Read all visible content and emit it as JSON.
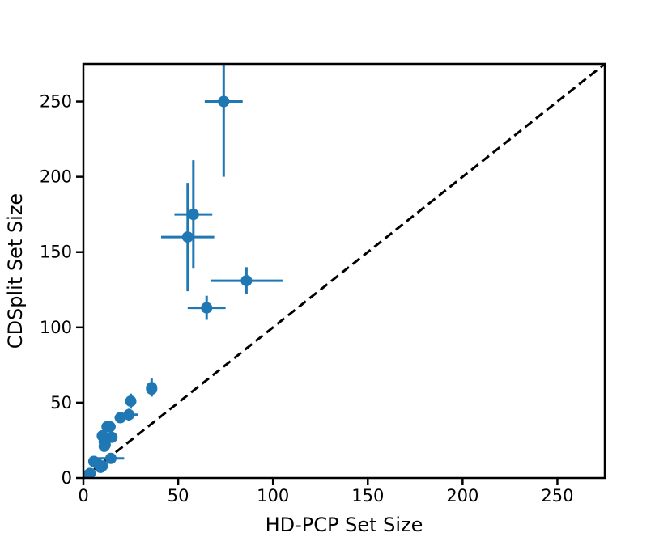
{
  "chart_data": {
    "type": "scatter",
    "title": "",
    "xlabel": "HD-PCP Set Size",
    "ylabel": "CDSplit Set Size",
    "xlim": [
      0,
      275
    ],
    "ylim": [
      0,
      275
    ],
    "xticks": [
      0,
      50,
      100,
      150,
      200,
      250
    ],
    "yticks": [
      0,
      50,
      100,
      150,
      200,
      250
    ],
    "grid": false,
    "legend": "none",
    "reference_line": {
      "style": "dashed",
      "color": "#000000",
      "from": [
        0,
        0
      ],
      "to": [
        275,
        275
      ]
    },
    "marker_color": "#1f77b4",
    "points": [
      {
        "x": 74,
        "y": 250,
        "xerr": 10,
        "yerr": 50
      },
      {
        "x": 58,
        "y": 175,
        "xerr": 10,
        "yerr": 36
      },
      {
        "x": 55,
        "y": 160,
        "xerr": 14,
        "yerr": 36
      },
      {
        "x": 86,
        "y": 131,
        "xerr": 19,
        "yerr": 9
      },
      {
        "x": 65,
        "y": 113,
        "xerr": 10,
        "yerr": 8
      },
      {
        "x": 36,
        "y": 60,
        "xerr": 2,
        "yerr": 6
      },
      {
        "x": 36,
        "y": 59,
        "xerr": 2,
        "yerr": 4
      },
      {
        "x": 25,
        "y": 51,
        "xerr": 2,
        "yerr": 5
      },
      {
        "x": 24,
        "y": 42,
        "xerr": 5,
        "yerr": 4
      },
      {
        "x": 19.5,
        "y": 40,
        "xerr": 3,
        "yerr": 2
      },
      {
        "x": 14,
        "y": 34,
        "xerr": 3,
        "yerr": 2
      },
      {
        "x": 12.5,
        "y": 34,
        "xerr": 2,
        "yerr": 2
      },
      {
        "x": 10,
        "y": 28,
        "xerr": 2,
        "yerr": 2
      },
      {
        "x": 15,
        "y": 27,
        "xerr": 3,
        "yerr": 2
      },
      {
        "x": 11,
        "y": 24,
        "xerr": 2,
        "yerr": 2
      },
      {
        "x": 11.5,
        "y": 22,
        "xerr": 2,
        "yerr": 3
      },
      {
        "x": 11,
        "y": 21,
        "xerr": 2,
        "yerr": 2
      },
      {
        "x": 14.5,
        "y": 13,
        "xerr": 7,
        "yerr": 2
      },
      {
        "x": 5.5,
        "y": 11,
        "xerr": 2,
        "yerr": 1
      },
      {
        "x": 7,
        "y": 10,
        "xerr": 2,
        "yerr": 1
      },
      {
        "x": 10,
        "y": 8,
        "xerr": 3,
        "yerr": 2
      },
      {
        "x": 9,
        "y": 7,
        "xerr": 2,
        "yerr": 1
      },
      {
        "x": 3.5,
        "y": 3,
        "xerr": 1,
        "yerr": 1
      },
      {
        "x": 2.5,
        "y": 2,
        "xerr": 1,
        "yerr": 1
      },
      {
        "x": 1,
        "y": 1,
        "xerr": 0.5,
        "yerr": 0.5
      }
    ]
  }
}
